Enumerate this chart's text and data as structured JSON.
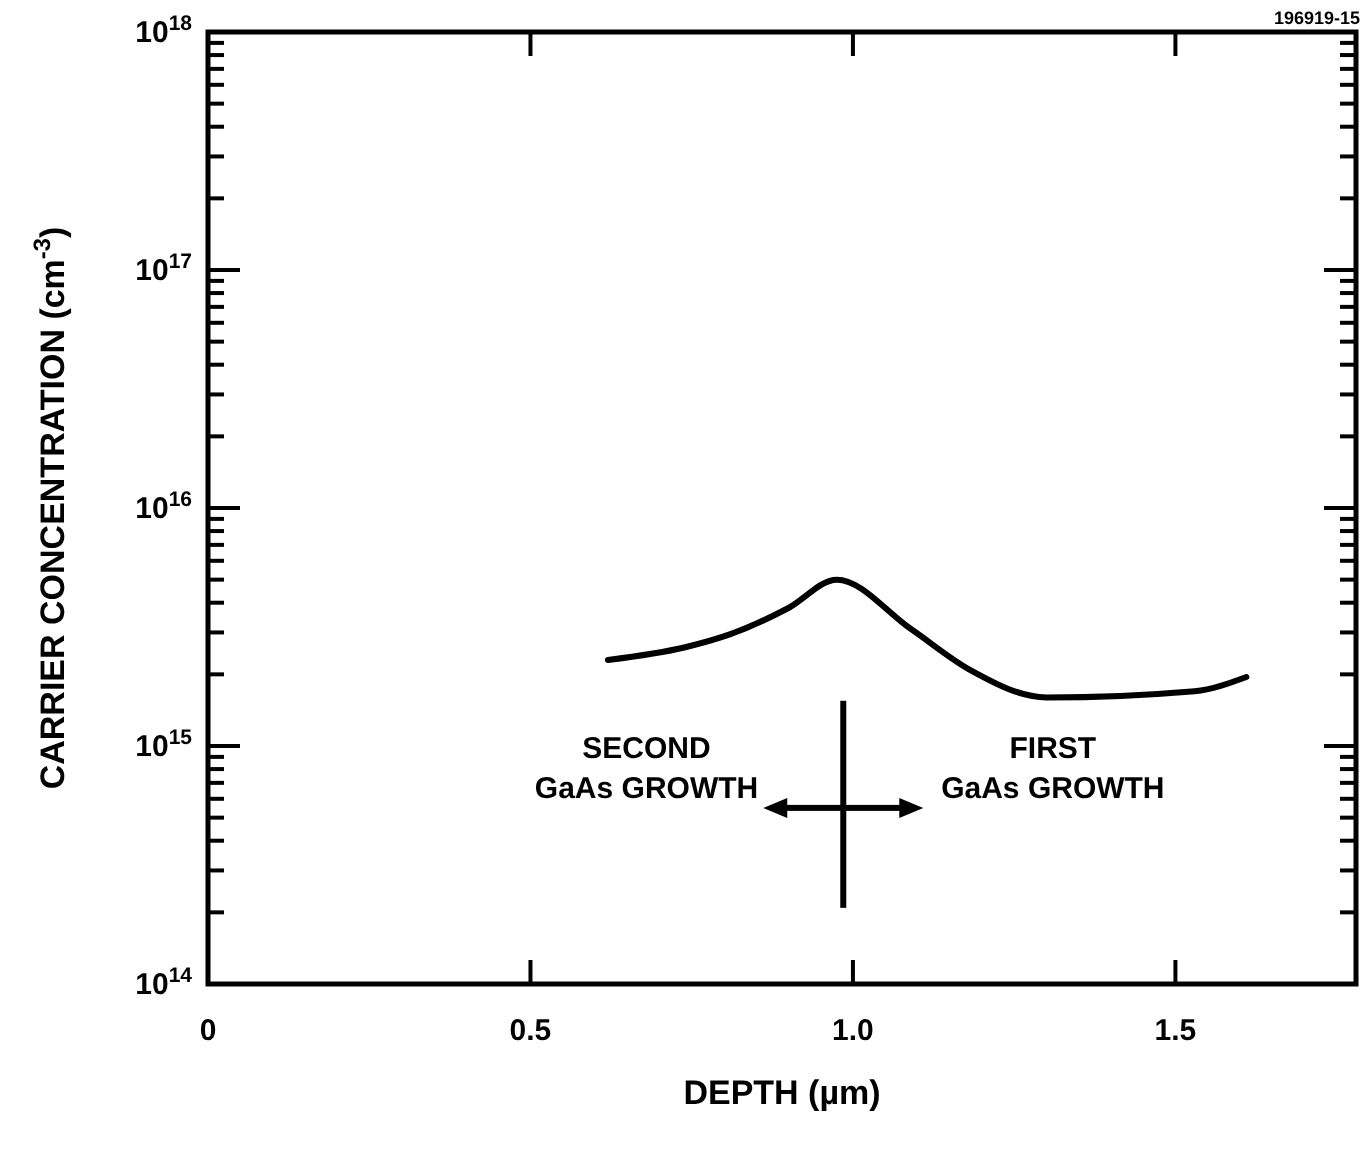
{
  "chart_data": {
    "type": "line",
    "xlabel": "DEPTH (µm)",
    "ylabel": "CARRIER CONCENTRATION (cm$^{-3}$)",
    "log": "y",
    "xlim": [
      0,
      1.78
    ],
    "xticks": [
      0,
      0.5,
      {
        "value": 1,
        "label": "1.0"
      },
      1.5
    ],
    "ylim": [
      100000000000000.0,
      1e+18
    ],
    "yticks": [
      {
        "value": 100000000000000.0,
        "label": "10$^{14}$"
      },
      {
        "value": 200000000000000.0,
        "label": null
      },
      {
        "value": 300000000000000.0,
        "label": null
      },
      {
        "value": 400000000000000.0,
        "label": null
      },
      {
        "value": 500000000000000.0,
        "label": null
      },
      {
        "value": 600000000000000.0,
        "label": null
      },
      {
        "value": 700000000000000.0,
        "label": null
      },
      {
        "value": 800000000000000.0,
        "label": null
      },
      {
        "value": 900000000000000.0,
        "label": null
      },
      {
        "value": 1000000000000000.0,
        "label": "10$^{15}$"
      },
      {
        "value": 2000000000000000.0,
        "label": null
      },
      {
        "value": 3000000000000000.0,
        "label": null
      },
      {
        "value": 4000000000000000.0,
        "label": null
      },
      {
        "value": 5000000000000000.0,
        "label": null
      },
      {
        "value": 6000000000000000.0,
        "label": null
      },
      {
        "value": 7000000000000000.0,
        "label": null
      },
      {
        "value": 8000000000000000.0,
        "label": null
      },
      {
        "value": 9000000000000000.0,
        "label": null
      },
      {
        "value": 1e+16,
        "label": "10$^{16}$"
      },
      {
        "value": 2e+16,
        "label": null
      },
      {
        "value": 3e+16,
        "label": null
      },
      {
        "value": 4e+16,
        "label": null
      },
      {
        "value": 5e+16,
        "label": null
      },
      {
        "value": 6e+16,
        "label": null
      },
      {
        "value": 7e+16,
        "label": null
      },
      {
        "value": 8e+16,
        "label": null
      },
      {
        "value": 9e+16,
        "label": null
      },
      {
        "value": 1e+17,
        "label": "10$^{17}$"
      },
      {
        "value": 2e+17,
        "label": null
      },
      {
        "value": 3e+17,
        "label": null
      },
      {
        "value": 4e+17,
        "label": null
      },
      {
        "value": 5e+17,
        "label": null
      },
      {
        "value": 6e+17,
        "label": null
      },
      {
        "value": 7e+17,
        "label": null
      },
      {
        "value": 8e+17,
        "label": null
      },
      {
        "value": 9e+17,
        "label": null
      },
      {
        "value": 1e+18,
        "label": "10$^{18}$"
      }
    ],
    "grid": false,
    "marker": "none",
    "line_style": "solid",
    "series": [
      {
        "color": "#000000",
        "x": [
          0.62,
          0.74,
          0.81,
          0.9,
          0.975,
          1.09,
          1.18,
          1.3,
          1.53,
          1.61
        ],
        "values": [
          2300000000000000.0,
          2600000000000000.0,
          2950000000000000.0,
          3800000000000000.0,
          5000000000000000.0,
          3100000000000000.0,
          2100000000000000.0,
          1600000000000000.0,
          1700000000000000.0,
          1950000000000000.0
        ]
      }
    ],
    "annotations": [
      "SECOND GaAs GROWTH",
      "FIRST GaAs GROWTH",
      "196919-15"
    ]
  }
}
